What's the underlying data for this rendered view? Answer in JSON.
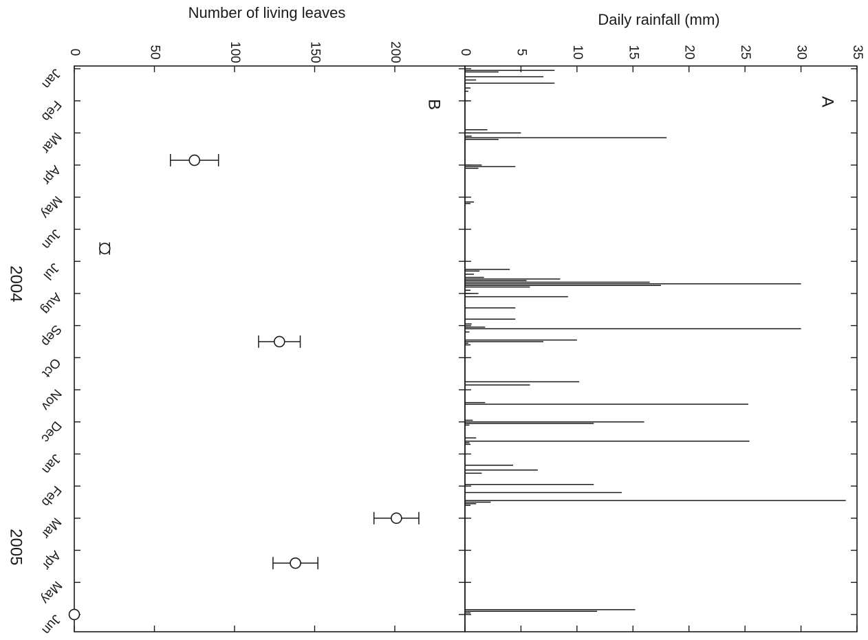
{
  "chart_data": [
    {
      "panel_label": "A",
      "type": "bar",
      "ylabel": "Daily rainfall (mm)",
      "ylim": [
        0,
        35
      ],
      "yticks": [
        0,
        5,
        10,
        15,
        20,
        25,
        30,
        35
      ],
      "x_unit": "month index (0 = Jan 2004)",
      "x": [
        0.05,
        0.1,
        0.25,
        0.35,
        0.45,
        0.6,
        0.7,
        1.0,
        1.9,
        2.0,
        2.1,
        2.15,
        2.2,
        3.0,
        3.05,
        3.1,
        4.15,
        4.2,
        6.25,
        6.3,
        6.4,
        6.5,
        6.55,
        6.6,
        6.65,
        6.7,
        6.75,
        6.8,
        6.9,
        7.0,
        7.1,
        7.45,
        7.8,
        7.95,
        8.05,
        8.1,
        8.2,
        8.45,
        8.5,
        8.55,
        8.6,
        9.75,
        9.85,
        10.4,
        10.45,
        10.95,
        11.0,
        11.05,
        11.1,
        11.5,
        11.6,
        11.65,
        11.7,
        12.35,
        12.5,
        12.6,
        12.95,
        13.2,
        13.45,
        13.5,
        13.55,
        13.6,
        16.85,
        16.9,
        16.95
      ],
      "values": [
        8,
        3,
        7,
        1,
        8,
        0.5,
        0.3,
        0.4,
        2,
        5,
        0.6,
        18,
        3,
        1.5,
        4.5,
        1.2,
        0.8,
        0.5,
        4,
        1.3,
        0.8,
        1.7,
        8.5,
        5.5,
        16.5,
        30,
        17.5,
        5.8,
        0.5,
        1.2,
        9.2,
        4.5,
        4.5,
        0.6,
        1.8,
        30,
        0.4,
        10,
        7,
        0.3,
        0.5,
        10.2,
        5.8,
        1.8,
        25.3,
        0.7,
        16,
        11.5,
        0.4,
        1,
        25.4,
        0.4,
        0.5,
        4.3,
        6.5,
        1.5,
        11.5,
        14,
        34,
        2.3,
        1,
        0.5,
        15.2,
        11.8,
        0.5
      ]
    },
    {
      "panel_label": "B",
      "type": "scatter",
      "ylabel": "Number of living leaves",
      "ylim": [
        0,
        250
      ],
      "yticks": [
        0,
        50,
        100,
        150,
        200
      ],
      "x_unit": "month index (0 = Jan 2004)",
      "x": [
        2.85,
        5.6,
        8.5,
        14.0,
        15.4,
        17.0
      ],
      "values": [
        75,
        19,
        128,
        201,
        138,
        0
      ],
      "error": [
        15,
        3,
        13,
        14,
        14,
        0
      ],
      "months": [
        "Jan",
        "Feb",
        "Mar",
        "Apr",
        "May",
        "Jun",
        "Jul",
        "Aug",
        "Sep",
        "Oct",
        "Nov",
        "Dec",
        "Jan",
        "Feb",
        "Mar",
        "Apr",
        "May",
        "Jun"
      ],
      "years": [
        "2004",
        "2005"
      ]
    }
  ]
}
